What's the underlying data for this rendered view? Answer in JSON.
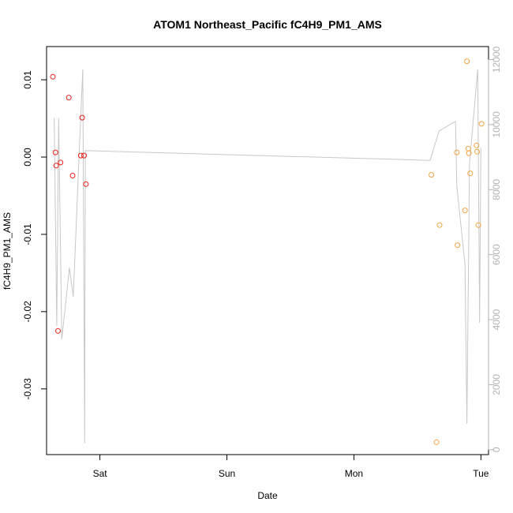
{
  "chart_data": {
    "type": "scatter",
    "title": "ATOM1 Northeast_Pacific fC4H9_PM1_AMS",
    "xlabel": "Date",
    "ylabel": "fC4H9_PM1_AMS",
    "x_ticks": [
      "Sat",
      "Sun",
      "Mon",
      "Tue"
    ],
    "y_ticks": [
      "-0.03",
      "-0.02",
      "-0.01",
      "0.00",
      "0.01"
    ],
    "y2_ticks": [
      "0",
      "2000",
      "4000",
      "6000",
      "8000",
      "10000",
      "12000"
    ],
    "xlim": [
      -0.42,
      3.06
    ],
    "ylim": [
      -0.0385,
      0.0143
    ],
    "y2lim": [
      -150,
      12400
    ],
    "colors": {
      "series1": "#e8231d",
      "series2": "#f4a340",
      "altitude_line": "#c8c8c8"
    },
    "series": [
      {
        "points": [
          {
            "x": -0.37,
            "y": 0.0104
          },
          {
            "x": -0.35,
            "y": 0.0006
          },
          {
            "x": -0.345,
            "y": -0.0011
          },
          {
            "x": -0.33,
            "y": -0.0225
          },
          {
            "x": -0.31,
            "y": -0.0007
          },
          {
            "x": -0.245,
            "y": 0.0077
          },
          {
            "x": -0.215,
            "y": -0.0024
          },
          {
            "x": -0.15,
            "y": 0.0002
          },
          {
            "x": -0.14,
            "y": 0.0051
          },
          {
            "x": -0.125,
            "y": 0.0002
          },
          {
            "x": -0.11,
            "y": -0.0035
          }
        ]
      },
      {
        "points": [
          {
            "x": 2.61,
            "y": -0.0023
          },
          {
            "x": 2.65,
            "y": -0.0369
          },
          {
            "x": 2.675,
            "y": -0.0088
          },
          {
            "x": 2.81,
            "y": 0.0006
          },
          {
            "x": 2.815,
            "y": -0.0114
          },
          {
            "x": 2.875,
            "y": -0.0069
          },
          {
            "x": 2.89,
            "y": 0.0124
          },
          {
            "x": 2.9,
            "y": 0.0011
          },
          {
            "x": 2.905,
            "y": 0.0005
          },
          {
            "x": 2.915,
            "y": -0.0021
          },
          {
            "x": 2.965,
            "y": 0.0015
          },
          {
            "x": 2.97,
            "y": 0.0007
          },
          {
            "x": 2.98,
            "y": -0.0088
          },
          {
            "x": 3.005,
            "y": 0.0043
          }
        ]
      }
    ],
    "altitude_line": [
      [
        -0.36,
        10200
      ],
      [
        -0.34,
        3800
      ],
      [
        -0.325,
        10200
      ],
      [
        -0.3,
        3400
      ],
      [
        -0.24,
        5600
      ],
      [
        -0.21,
        4700
      ],
      [
        -0.16,
        9400
      ],
      [
        -0.135,
        11700
      ],
      [
        -0.12,
        200
      ],
      [
        -0.115,
        9200
      ],
      [
        2.6,
        8900
      ],
      [
        2.67,
        9800
      ],
      [
        2.8,
        10100
      ],
      [
        2.81,
        8100
      ],
      [
        2.875,
        5700
      ],
      [
        2.89,
        800
      ],
      [
        2.91,
        8800
      ],
      [
        2.975,
        11700
      ],
      [
        2.99,
        3900
      ],
      [
        3.0,
        9300
      ]
    ]
  }
}
